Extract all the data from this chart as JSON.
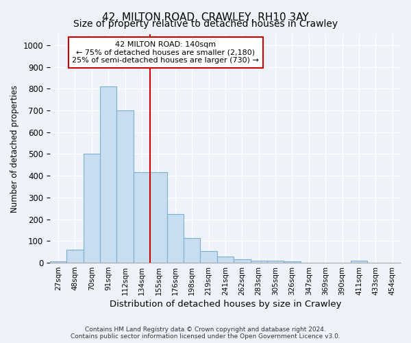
{
  "title1": "42, MILTON ROAD, CRAWLEY, RH10 3AY",
  "title2": "Size of property relative to detached houses in Crawley",
  "xlabel": "Distribution of detached houses by size in Crawley",
  "ylabel": "Number of detached properties",
  "bar_color": "#c8ddf0",
  "bar_edge_color": "#7aafd4",
  "bins": [
    "27sqm",
    "48sqm",
    "70sqm",
    "91sqm",
    "112sqm",
    "134sqm",
    "155sqm",
    "176sqm",
    "198sqm",
    "219sqm",
    "241sqm",
    "262sqm",
    "283sqm",
    "305sqm",
    "326sqm",
    "347sqm",
    "369sqm",
    "390sqm",
    "411sqm",
    "433sqm",
    "454sqm"
  ],
  "values": [
    5,
    60,
    500,
    810,
    700,
    415,
    415,
    225,
    115,
    55,
    30,
    15,
    10,
    10,
    5,
    0,
    0,
    0,
    10,
    0,
    0
  ],
  "vline_color": "#cc0000",
  "annotation_text": "42 MILTON ROAD: 140sqm\n← 75% of detached houses are smaller (2,180)\n25% of semi-detached houses are larger (730) →",
  "annotation_box_color": "#ffffff",
  "annotation_box_edge": "#cc0000",
  "ylim": [
    0,
    1050
  ],
  "yticks": [
    0,
    100,
    200,
    300,
    400,
    500,
    600,
    700,
    800,
    900,
    1000
  ],
  "footnote1": "Contains HM Land Registry data © Crown copyright and database right 2024.",
  "footnote2": "Contains public sector information licensed under the Open Government Licence v3.0.",
  "bg_color": "#eef2f9",
  "plot_bg_color": "#eef2f9",
  "title1_fontsize": 11,
  "title2_fontsize": 10
}
